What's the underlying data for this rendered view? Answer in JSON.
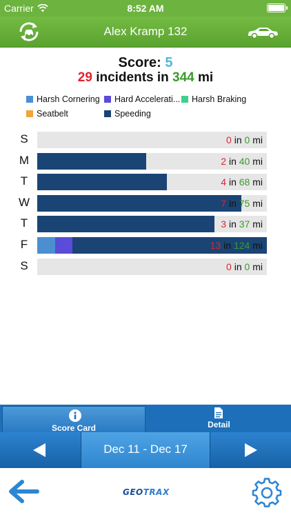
{
  "status_bar": {
    "carrier": "Carrier",
    "time": "8:52 AM"
  },
  "header": {
    "title": "Alex Kramp 132",
    "left_icon": "refresh-car-icon",
    "right_icon": "car-icon"
  },
  "score": {
    "label": "Score:",
    "value": "5"
  },
  "summary": {
    "incidents": "29",
    "incidents_label": "incidents in",
    "miles": "344",
    "unit": "mi"
  },
  "legend": [
    {
      "label": "Harsh Cornering",
      "color": "#4b8fd0"
    },
    {
      "label": "Hard Accelerati...",
      "color": "#5a4bd8"
    },
    {
      "label": "Harsh Braking",
      "color": "#3fcf8e"
    },
    {
      "label": "Seatbelt",
      "color": "#f4a23c"
    },
    {
      "label": "Speeding",
      "color": "#1a4474"
    }
  ],
  "chart_data": {
    "type": "bar",
    "orientation": "horizontal",
    "stacked": true,
    "categories": [
      "S",
      "M",
      "T",
      "W",
      "T",
      "F",
      "S"
    ],
    "series": [
      {
        "name": "Harsh Cornering",
        "values": [
          0,
          0,
          0,
          0,
          0,
          1,
          0
        ]
      },
      {
        "name": "Hard Accelerati...",
        "values": [
          0,
          0,
          0,
          0,
          0,
          1,
          0
        ]
      },
      {
        "name": "Harsh Braking",
        "values": [
          0,
          0,
          0,
          0,
          0,
          0,
          0
        ]
      },
      {
        "name": "Seatbelt",
        "values": [
          0,
          0,
          0,
          0,
          0,
          0,
          0
        ]
      },
      {
        "name": "Speeding",
        "values": [
          0,
          2,
          4,
          7,
          3,
          11,
          0
        ]
      }
    ],
    "bar_fill_fraction": [
      0,
      0.475,
      0.566,
      0.89,
      0.771,
      1.0,
      0
    ],
    "incidents": [
      "0",
      "2",
      "4",
      "7",
      "3",
      "13",
      "0"
    ],
    "miles": [
      "0",
      "40",
      "68",
      "75",
      "37",
      "124",
      "0"
    ],
    "mid_text": "in",
    "unit": "mi"
  },
  "tabs": [
    {
      "label": "Score Card",
      "icon": "info-icon",
      "active": true
    },
    {
      "label": "Detail",
      "icon": "document-icon",
      "active": false
    }
  ],
  "date_range": "Dec 11 - Dec 17",
  "toolbar": {
    "logo_geo": "GEO",
    "logo_trax": "TRAX"
  }
}
